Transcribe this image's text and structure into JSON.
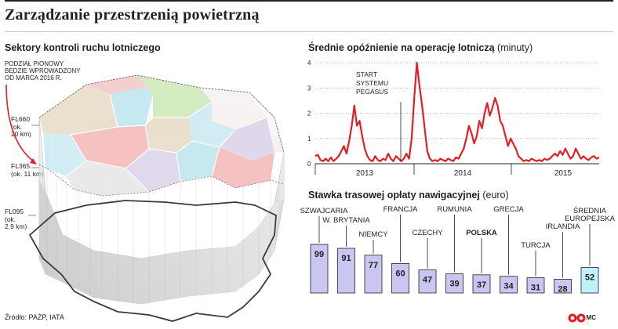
{
  "title": "Zarządzanie przestrzenią powietrzną",
  "map": {
    "heading": "Sektory kontroli ruchu lotniczego",
    "note_lines": [
      "PODZIAŁ PIONOWY",
      "BĘDZIE WPROWADZONY",
      "OD MARCA 2016 R."
    ],
    "levels": [
      {
        "name": "FL660",
        "alt": "(ok.",
        "alt2": "20 km)"
      },
      {
        "name": "FL365",
        "alt": "(ok. 11 km)",
        "alt2": ""
      },
      {
        "name": "FL095",
        "alt": "(ok.",
        "alt2": "2,9 km)"
      }
    ],
    "sector_colors": [
      "#f2c9c9",
      "#bfe6ef",
      "#cfe8b8",
      "#e9dcc8",
      "#dcd4ea",
      "#f5b9b9",
      "#ccebf3",
      "#e6e6e6"
    ]
  },
  "source": "Źródło: PAŻP, IATA",
  "credit": "MC",
  "chart_data": [
    {
      "type": "line",
      "title": "Średnie opóźnienie na operację lotniczą",
      "unit": "(minuty)",
      "ylim": [
        0,
        4
      ],
      "yticks": [
        "4",
        "3",
        "2",
        "1",
        "0"
      ],
      "x_labels": [
        "2013",
        "2014",
        "2015"
      ],
      "grid": "horizontal dotted",
      "annotation": [
        "START",
        "SYSTEMU",
        "PEGASUS"
      ],
      "color": "#e31e24",
      "series": [
        {
          "values": [
            0.3,
            0.35,
            0.15,
            0.1,
            0.2,
            0.1,
            0.25,
            0.1,
            0.2,
            0.3,
            0.5,
            0.7,
            0.4,
            0.9,
            1.5,
            2.3,
            1.5,
            1.7,
            1.1,
            0.6,
            0.3,
            0.15,
            0.1,
            0.3,
            0.15,
            0.1,
            0.2,
            0.15,
            0.4,
            0.2,
            0.1,
            0.3,
            0.2,
            0.1,
            0.2,
            0.4,
            0.2,
            1.0,
            2.6,
            4.0,
            3.1,
            2.3,
            1.4,
            0.5,
            0.2,
            0.1,
            0.15,
            0.1,
            0.2,
            0.15,
            0.1,
            0.2,
            0.15,
            0.1,
            0.25,
            0.2,
            0.4,
            0.6,
            1.0,
            1.5,
            1.2,
            0.8,
            1.1,
            1.7,
            1.4,
            2.0,
            2.4,
            1.9,
            2.2,
            2.6,
            2.3,
            1.7,
            1.5,
            1.1,
            0.7,
            1.0,
            0.8,
            0.6,
            0.3,
            0.2,
            0.1,
            0.15,
            0.1,
            0.2,
            0.15,
            0.1,
            0.15,
            0.1,
            0.2,
            0.15,
            0.2,
            0.3,
            0.4,
            0.3,
            0.5,
            0.35,
            0.6,
            0.4,
            0.2,
            0.3,
            0.6,
            0.4,
            0.2,
            0.3,
            0.2,
            0.15,
            0.25,
            0.3,
            0.2,
            0.25
          ]
        }
      ]
    },
    {
      "type": "bar",
      "title": "Stawka trasowej opłaty nawigacyjnej",
      "unit": "(euro)",
      "categories": [
        "SZWAJCARIA",
        "W. BRYTANIA",
        "NIEMCY",
        "FRANCJA",
        "CZECHY",
        "RUMUNIA",
        "POLSKA",
        "GRECJA",
        "TURCJA",
        "IRLANDIA",
        "ŚREDNIA EUROPEJSKA"
      ],
      "label_lines": [
        [
          "SZWAJCARIA"
        ],
        [
          "W. BRYTANIA"
        ],
        [
          "NIEMCY"
        ],
        [
          "FRANCJA"
        ],
        [
          "CZECHY"
        ],
        [
          "RUMUNIA"
        ],
        [
          "POLSKA"
        ],
        [
          "GRECJA"
        ],
        [
          "TURCJA"
        ],
        [
          "IRLANDIA"
        ],
        [
          "ŚREDNIA",
          "EUROPEJSKA"
        ]
      ],
      "values": [
        99,
        91,
        77,
        60,
        47,
        39,
        37,
        34,
        31,
        28,
        52
      ],
      "bar_color": "#c9c7f2",
      "highlight_color": "#bff1f9",
      "highlight_category": "ŚREDNIA EUROPEJSKA",
      "bold_category": "POLSKA"
    }
  ]
}
